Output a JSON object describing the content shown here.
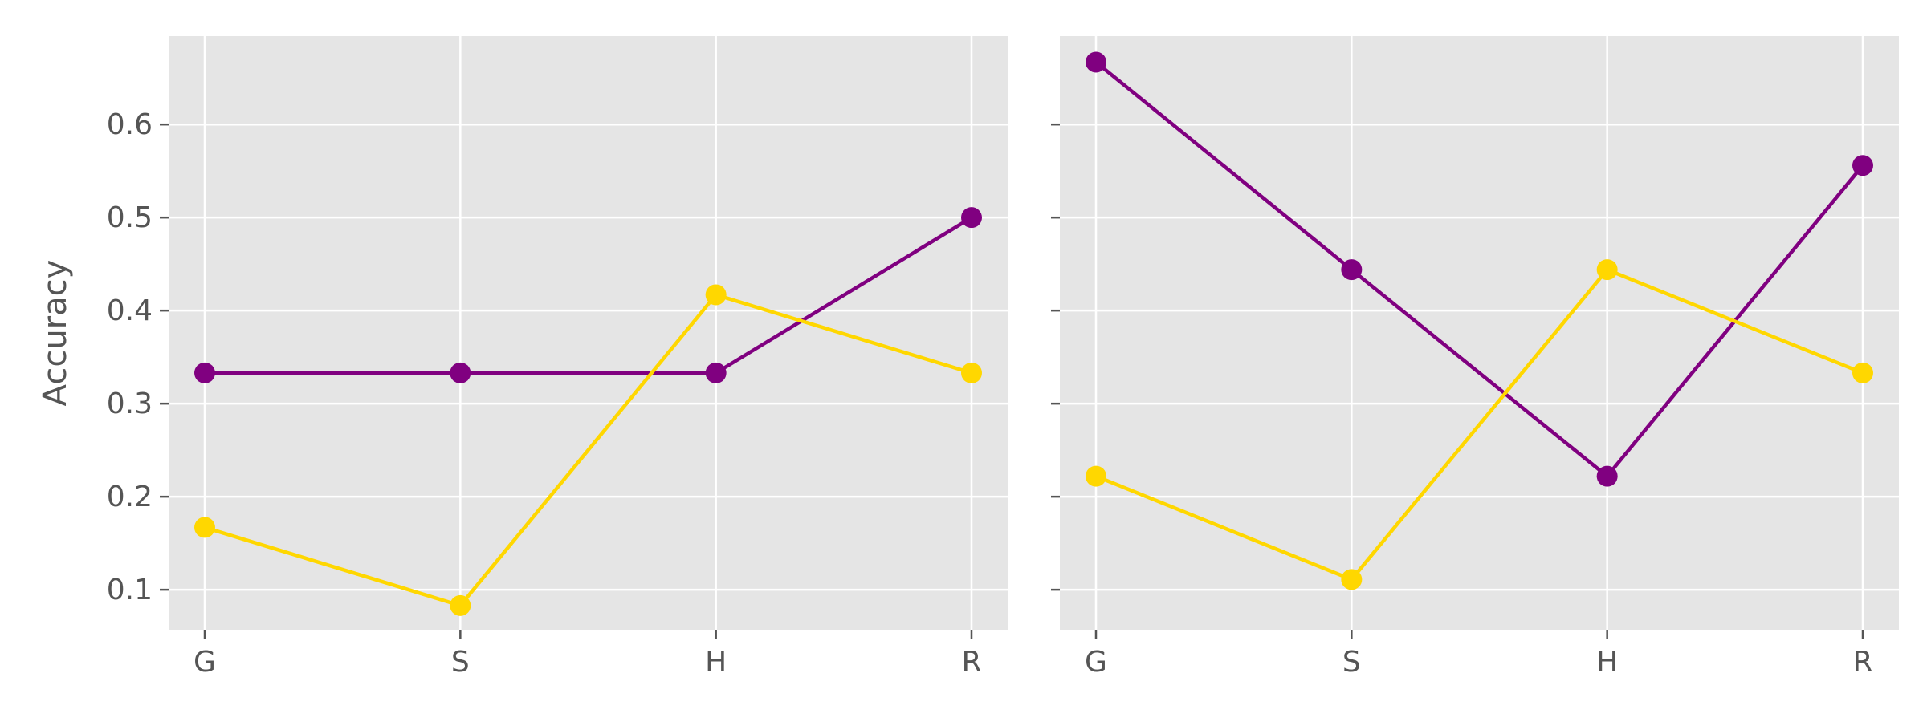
{
  "chart_data": [
    {
      "type": "line",
      "title": "",
      "xlabel": "",
      "ylabel": "Accuracy",
      "categories": [
        "G",
        "S",
        "H",
        "R"
      ],
      "ylim": [
        0.057,
        0.695
      ],
      "yticks": [
        "0.1",
        "0.2",
        "0.3",
        "0.4",
        "0.5",
        "0.6"
      ],
      "grid": true,
      "legend": "none",
      "series": [
        {
          "color": "#800080",
          "values": [
            0.333,
            0.333,
            0.333,
            0.5
          ]
        },
        {
          "color": "#FFD700",
          "values": [
            0.167,
            0.083,
            0.417,
            0.333
          ]
        }
      ]
    },
    {
      "type": "line",
      "title": "",
      "xlabel": "",
      "ylabel": "",
      "categories": [
        "G",
        "S",
        "H",
        "R"
      ],
      "ylim": [
        0.057,
        0.695
      ],
      "yticks": [
        "0.1",
        "0.2",
        "0.3",
        "0.4",
        "0.5",
        "0.6"
      ],
      "ytick_labels_visible": false,
      "grid": true,
      "legend": "none",
      "series": [
        {
          "color": "#800080",
          "values": [
            0.667,
            0.444,
            0.222,
            0.556
          ]
        },
        {
          "color": "#FFD700",
          "values": [
            0.222,
            0.111,
            0.444,
            0.333
          ]
        }
      ]
    }
  ]
}
